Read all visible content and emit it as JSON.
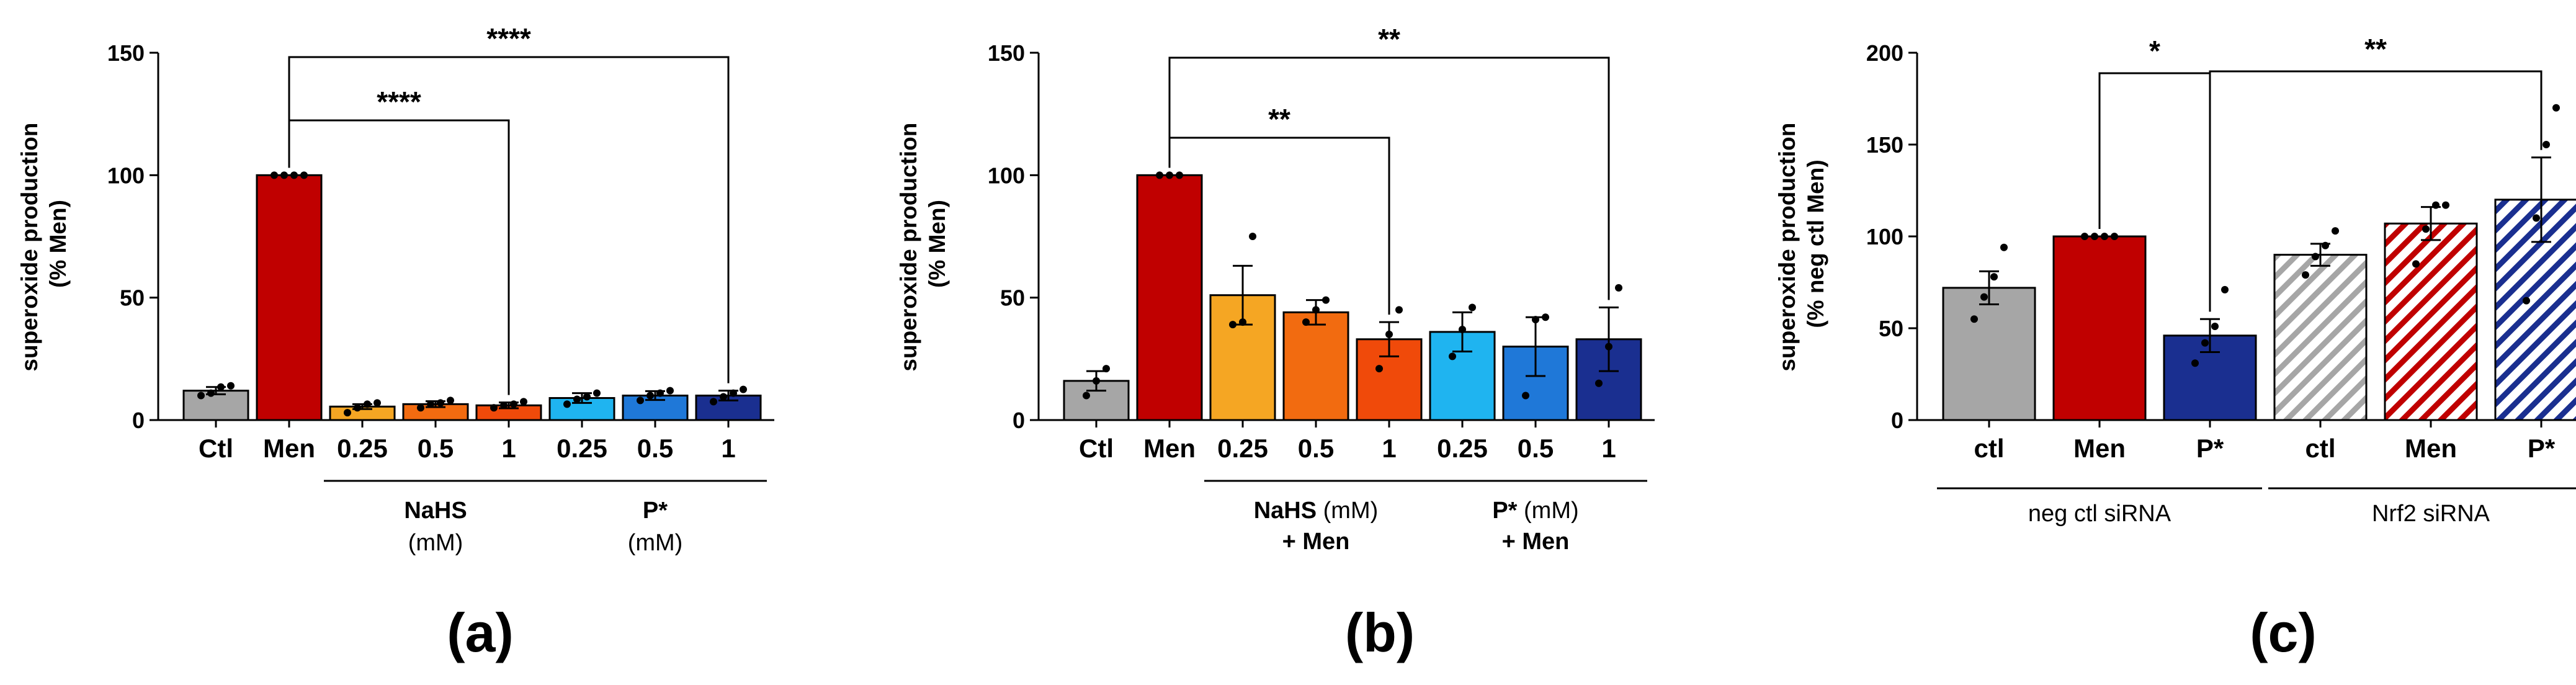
{
  "chart_data": [
    {
      "id": "a",
      "type": "bar",
      "panel_label": "(a)",
      "ylabel_line1": "superoxide production",
      "ylabel_line2": "(% Men)",
      "ylim": [
        0,
        150
      ],
      "yticks": [
        "0",
        "50",
        "100",
        "150"
      ],
      "categories": [
        "Ctl",
        "Men",
        "0.25",
        "0.5",
        "1",
        "0.25",
        "0.5",
        "1"
      ],
      "values": [
        12,
        100,
        5.5,
        6.5,
        6,
        9,
        10,
        10
      ],
      "errors": [
        1.5,
        0,
        1,
        1.2,
        1.2,
        2,
        1.8,
        2
      ],
      "colors": [
        "#a6a6a6",
        "#c00000",
        "#f5a623",
        "#f26b10",
        "#f04a0a",
        "#1fb4f0",
        "#1f78d8",
        "#1a2f90"
      ],
      "hatched": [
        false,
        false,
        false,
        false,
        false,
        false,
        false,
        false
      ],
      "points": [
        [
          10,
          11,
          13.5,
          14
        ],
        [
          100,
          100,
          100,
          100
        ],
        [
          3,
          5,
          6.5,
          7
        ],
        [
          5,
          6.5,
          7,
          8
        ],
        [
          5,
          6,
          6.5,
          7.5
        ],
        [
          6.5,
          8.5,
          9.5,
          11
        ],
        [
          8,
          10,
          11,
          12
        ],
        [
          7.5,
          9.5,
          11,
          12.5
        ]
      ],
      "groups": [
        {
          "name": "NaHS",
          "unit": "(mM)",
          "from": 2,
          "to": 4
        },
        {
          "name": "P*",
          "unit": "(mM)",
          "from": 5,
          "to": 7
        }
      ],
      "significance": [
        {
          "from": 1,
          "to": 4,
          "label": "****"
        },
        {
          "from": 1,
          "to": 7,
          "label": "****"
        }
      ]
    },
    {
      "id": "b",
      "type": "bar",
      "panel_label": "(b)",
      "ylabel_line1": "superoxide production",
      "ylabel_line2": "(% Men)",
      "ylim": [
        0,
        150
      ],
      "yticks": [
        "0",
        "50",
        "100",
        "150"
      ],
      "categories": [
        "Ctl",
        "Men",
        "0.25",
        "0.5",
        "1",
        "0.25",
        "0.5",
        "1"
      ],
      "values": [
        16,
        100,
        51,
        44,
        33,
        36,
        30,
        33
      ],
      "errors": [
        4,
        0,
        12,
        5,
        7,
        8,
        12,
        13
      ],
      "colors": [
        "#a6a6a6",
        "#c00000",
        "#f5a623",
        "#f26b10",
        "#f04a0a",
        "#1fb4f0",
        "#1f78d8",
        "#1a2f90"
      ],
      "hatched": [
        false,
        false,
        false,
        false,
        false,
        false,
        false,
        false
      ],
      "points": [
        [
          10,
          16,
          21
        ],
        [
          100,
          100,
          100
        ],
        [
          39,
          40,
          75
        ],
        [
          40,
          45,
          49
        ],
        [
          21,
          35,
          45
        ],
        [
          26,
          37,
          46
        ],
        [
          10,
          41,
          42
        ],
        [
          15,
          30,
          54
        ]
      ],
      "groups": [
        {
          "name": "NaHS",
          "unit": "(mM)",
          "extra": "+ Men",
          "from": 2,
          "to": 4
        },
        {
          "name": "P*",
          "unit": "(mM)",
          "extra": "+ Men",
          "from": 5,
          "to": 7
        }
      ],
      "significance": [
        {
          "from": 1,
          "to": 4,
          "label": "**"
        },
        {
          "from": 1,
          "to": 7,
          "label": "**"
        }
      ]
    },
    {
      "id": "c",
      "type": "bar",
      "panel_label": "(c)",
      "ylabel_line1": "superoxide production",
      "ylabel_line2": "(% neg ctl Men)",
      "ylim": [
        0,
        200
      ],
      "yticks": [
        "0",
        "50",
        "100",
        "150",
        "200"
      ],
      "categories": [
        "ctl",
        "Men",
        "P*",
        "ctl",
        "Men",
        "P*"
      ],
      "values": [
        72,
        100,
        46,
        90,
        107,
        120
      ],
      "errors": [
        9,
        0,
        9,
        6,
        9,
        23
      ],
      "colors": [
        "#a6a6a6",
        "#c00000",
        "#1a2f90",
        "#a6a6a6",
        "#c00000",
        "#1a2f90"
      ],
      "hatched": [
        false,
        false,
        false,
        true,
        true,
        true
      ],
      "points": [
        [
          55,
          67,
          78,
          94
        ],
        [
          100,
          100,
          100,
          100
        ],
        [
          31,
          42,
          51,
          71
        ],
        [
          79,
          89,
          95,
          103
        ],
        [
          85,
          104,
          117,
          117
        ],
        [
          65,
          110,
          150,
          170
        ]
      ],
      "groups": [
        {
          "name": "neg ctl siRNA",
          "from": 0,
          "to": 2
        },
        {
          "name": "Nrf2 siRNA",
          "from": 3,
          "to": 5
        }
      ],
      "significance": [
        {
          "from": 1,
          "to": 2,
          "label": "*"
        },
        {
          "from": 2,
          "to": 5,
          "label": "**"
        }
      ]
    }
  ]
}
